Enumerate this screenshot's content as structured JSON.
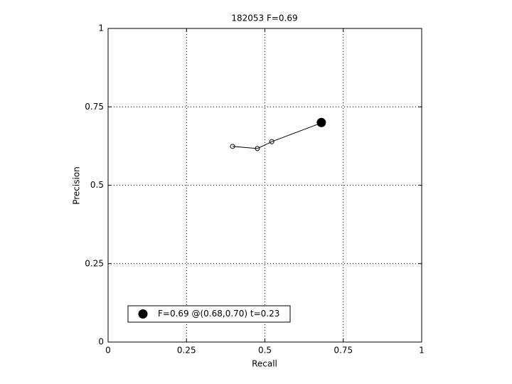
{
  "chart_data": {
    "type": "line",
    "title": "182053 F=0.69",
    "x_label": "Recall",
    "y_label": "Precision",
    "series": [
      {
        "x": [
          0.397,
          0.476,
          0.522,
          0.678
        ],
        "values": [
          0.624,
          0.617,
          0.639,
          0.698
        ],
        "color": "#000000",
        "filled": false
      },
      {
        "name": "F=0.69 @(0.68,0.70) t=0.23",
        "x": [
          0.68
        ],
        "values": [
          0.7
        ],
        "color": "#000000",
        "filled": true
      }
    ],
    "xlim": [
      0,
      1
    ],
    "ylim": [
      0,
      1
    ],
    "xticks": [
      0,
      0.25,
      0.5,
      0.75,
      1
    ],
    "yticks": [
      0,
      0.25,
      0.5,
      0.75,
      1
    ],
    "grid": true,
    "legend": "lower-left"
  }
}
